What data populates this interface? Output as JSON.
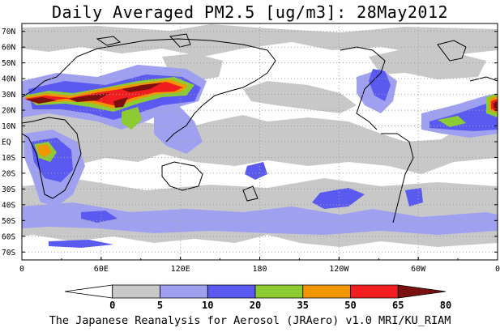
{
  "title": "Daily Averaged PM2.5 [ug/m3]: 28May2012",
  "footer": "The Japanese Reanalysis for Aerosol (JRAero) v1.0 MRI/KU_RIAM",
  "lat_labels": [
    "70N",
    "60N",
    "50N",
    "40N",
    "30N",
    "20N",
    "10N",
    "EQ",
    "10S",
    "20S",
    "30S",
    "40S",
    "50S",
    "60S",
    "70S"
  ],
  "lon_labels": [
    "0",
    "60E",
    "120E",
    "180",
    "120W",
    "60W",
    "0"
  ],
  "colorbar": {
    "thresholds": [
      "0",
      "5",
      "10",
      "20",
      "35",
      "50",
      "65",
      "80"
    ],
    "colors": [
      "#ffffff",
      "#c8c8c8",
      "#a0a0f0",
      "#5a5af0",
      "#8ccc32",
      "#f09600",
      "#f01e1e",
      "#7a1010"
    ]
  },
  "colors": {
    "ocean": "#ffffff",
    "coastline": "#000000",
    "grid": "#a0a0a0"
  }
}
